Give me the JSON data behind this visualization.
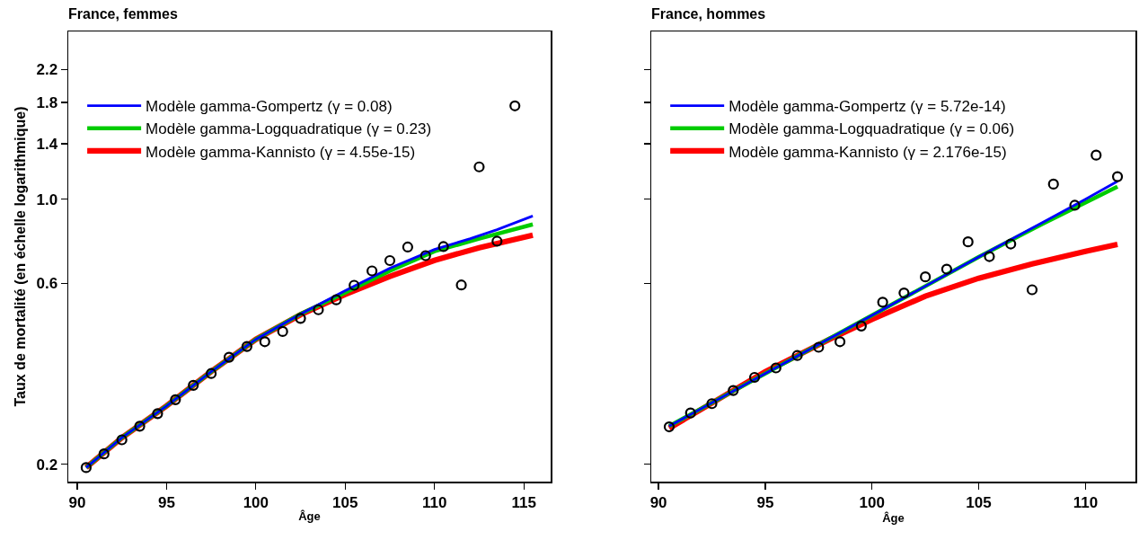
{
  "chart_data": [
    {
      "type": "line",
      "title": "France, femmes",
      "xlabel": "Âge",
      "ylabel": "Taux de mortalité (en échelle logarithmique)",
      "log": "y",
      "grid": false,
      "legend": "top left",
      "xlim": [
        89.5,
        116.5
      ],
      "xticks": [
        90,
        95,
        100,
        105,
        110,
        115
      ],
      "ylim": [
        0.18,
        2.77
      ],
      "yticks": [
        0.2,
        0.6,
        {
          "value": 1,
          "label": "1.0"
        },
        1.4,
        1.8,
        2.2
      ],
      "series": [
        {
          "type": "scatter",
          "marker": "circle",
          "color": "#000000",
          "x": [
            90.5,
            91.5,
            92.5,
            93.5,
            94.5,
            95.5,
            96.5,
            97.5,
            98.5,
            99.5,
            100.5,
            101.5,
            102.5,
            103.5,
            104.5,
            105.5,
            106.5,
            107.5,
            108.5,
            109.5,
            110.5,
            111.5,
            112.5,
            113.5,
            114.5
          ],
          "values": [
            0.196,
            0.213,
            0.232,
            0.252,
            0.272,
            0.296,
            0.323,
            0.347,
            0.383,
            0.409,
            0.421,
            0.448,
            0.485,
            0.511,
            0.543,
            0.593,
            0.647,
            0.689,
            0.748,
            0.71,
            0.75,
            0.594,
            1.217,
            0.775,
            1.763
          ]
        },
        {
          "name": "Modèle gamma-Gompertz (γ = 0.08)",
          "color": "#0000ff",
          "x": [
            90.5,
            92.5,
            95,
            97.5,
            100,
            102.5,
            105,
            107.5,
            110,
            112,
            113.5,
            115.5
          ],
          "values": [
            0.196,
            0.235,
            0.285,
            0.351,
            0.427,
            0.498,
            0.574,
            0.658,
            0.737,
            0.787,
            0.831,
            0.903
          ]
        },
        {
          "name": "Modèle gamma-Logquadratique (γ = 0.23)",
          "color": "#00cc00",
          "x": [
            90.5,
            92.5,
            95,
            97.5,
            100,
            102.5,
            105,
            107.5,
            110,
            112.5,
            115.5
          ],
          "values": [
            0.196,
            0.235,
            0.285,
            0.351,
            0.427,
            0.498,
            0.567,
            0.647,
            0.729,
            0.787,
            0.858
          ]
        },
        {
          "name": "Modèle gamma-Kannisto (γ = 4.55e-15)",
          "color": "#ff0000",
          "x": [
            90.5,
            92.5,
            95,
            97.5,
            100,
            102.5,
            105,
            107.5,
            110,
            112.5,
            115.5
          ],
          "values": [
            0.196,
            0.235,
            0.285,
            0.351,
            0.427,
            0.496,
            0.561,
            0.626,
            0.69,
            0.745,
            0.804
          ]
        }
      ]
    },
    {
      "type": "line",
      "title": "France, hommes",
      "xlabel": "Âge",
      "log": "y",
      "grid": false,
      "legend": "top left",
      "tick_labels": "x",
      "xlim": [
        89.66,
        112.34
      ],
      "xticks": [
        90,
        95,
        100,
        105,
        110
      ],
      "ylim": [
        0.18,
        2.77
      ],
      "yticks": [
        0.2,
        0.6,
        1,
        1.4,
        1.8,
        2.2
      ],
      "series": [
        {
          "type": "scatter",
          "marker": "circle",
          "color": "#000000",
          "x": [
            90.5,
            91.5,
            92.5,
            93.5,
            94.5,
            95.5,
            96.5,
            97.5,
            98.5,
            99.5,
            100.5,
            101.5,
            102.5,
            103.5,
            104.5,
            105.5,
            106.5,
            107.5,
            108.5,
            109.5,
            110.5,
            111.5
          ],
          "values": [
            0.251,
            0.273,
            0.289,
            0.313,
            0.339,
            0.359,
            0.387,
            0.407,
            0.421,
            0.463,
            0.535,
            0.566,
            0.624,
            0.654,
            0.772,
            0.706,
            0.762,
            0.577,
            1.096,
            0.964,
            1.307,
            1.147
          ]
        },
        {
          "name": "Modèle gamma-Gompertz (γ = 5.72e-14)",
          "color": "#0000ff",
          "x": [
            90.5,
            95,
            100,
            105,
            108,
            110,
            111.5
          ],
          "values": [
            0.252,
            0.347,
            0.494,
            0.704,
            0.869,
            1.0,
            1.115
          ]
        },
        {
          "name": "Modèle gamma-Logquadratique (γ = 0.06)",
          "color": "#00cc00",
          "x": [
            90.5,
            95,
            100,
            105,
            108,
            111.5
          ],
          "values": [
            0.252,
            0.347,
            0.494,
            0.704,
            0.862,
            1.079
          ]
        },
        {
          "name": "Modèle gamma-Kannisto (γ = 2.176e-15)",
          "color": "#ff0000",
          "x": [
            90.5,
            95,
            98,
            100,
            102.5,
            105,
            107.5,
            110,
            111.5
          ],
          "values": [
            0.249,
            0.351,
            0.427,
            0.482,
            0.555,
            0.619,
            0.675,
            0.729,
            0.76
          ]
        }
      ]
    }
  ]
}
